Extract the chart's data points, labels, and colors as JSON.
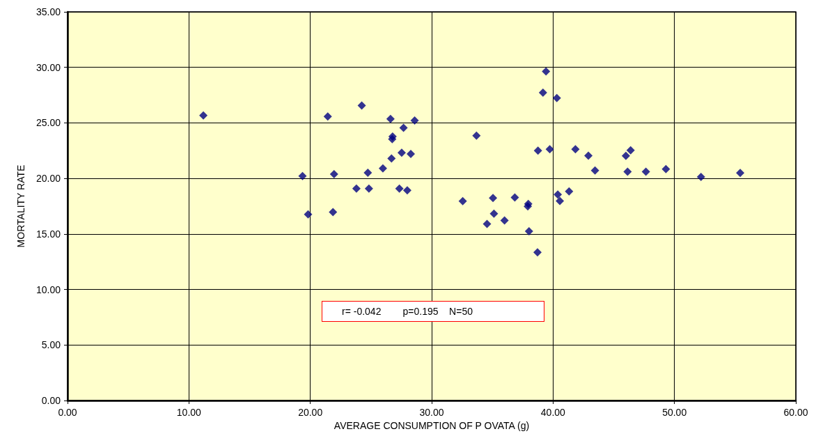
{
  "chart_data": {
    "type": "scatter",
    "xlabel": "AVERAGE CONSUMPTION OF P OVATA (g)",
    "ylabel": "MORTALITY RATE",
    "x": [
      11.19,
      21.44,
      24.24,
      26.61,
      28.6,
      27.68,
      26.78,
      26.75,
      27.53,
      28.28,
      26.69,
      25.98,
      24.74,
      21.96,
      19.36,
      23.8,
      24.83,
      27.34,
      27.99,
      19.82,
      21.87,
      39.42,
      39.17,
      40.31,
      33.69,
      38.76,
      39.73,
      41.84,
      42.91,
      46.39,
      46.0,
      43.46,
      46.14,
      47.65,
      49.3,
      52.19,
      55.42,
      32.56,
      35.05,
      36.85,
      37.96,
      37.92,
      40.39,
      40.56,
      41.32,
      35.13,
      34.56,
      36.0,
      38.02,
      38.72
    ],
    "series": [
      {
        "color": "#000080",
        "values": [
          25.67,
          25.57,
          26.57,
          25.36,
          25.21,
          24.56,
          23.78,
          23.53,
          22.32,
          22.21,
          21.79,
          20.91,
          20.51,
          20.39,
          20.22,
          19.09,
          19.09,
          19.09,
          18.92,
          16.76,
          16.97,
          29.64,
          27.73,
          27.24,
          23.85,
          22.51,
          22.62,
          22.62,
          22.05,
          22.53,
          22.03,
          20.71,
          20.6,
          20.6,
          20.84,
          20.14,
          20.5,
          17.95,
          18.23,
          18.29,
          17.7,
          17.49,
          18.55,
          17.97,
          18.84,
          16.83,
          15.9,
          16.21,
          15.24,
          13.35
        ]
      }
    ],
    "xlim": [
      0,
      60
    ],
    "xticks": [
      {
        "value": 0,
        "label": "0.00"
      },
      {
        "value": 10,
        "label": "10.00"
      },
      {
        "value": 20,
        "label": "20.00"
      },
      {
        "value": 30,
        "label": "30.00"
      },
      {
        "value": 40,
        "label": "40.00"
      },
      {
        "value": 50,
        "label": "50.00"
      },
      {
        "value": 60,
        "label": "60.00"
      }
    ],
    "ylim": [
      0,
      35
    ],
    "yticks": [
      {
        "value": 0,
        "label": "0.00"
      },
      {
        "value": 5,
        "label": "5.00"
      },
      {
        "value": 10,
        "label": "10.00"
      },
      {
        "value": 15,
        "label": "15.00"
      },
      {
        "value": 20,
        "label": "20.00"
      },
      {
        "value": 25,
        "label": "25.00"
      },
      {
        "value": 30,
        "label": "30.00"
      },
      {
        "value": 35,
        "label": "35.00"
      }
    ],
    "grid": true,
    "marker": "diamond",
    "annotations": [
      "r= -0.042        p=0.195    N=50"
    ]
  }
}
